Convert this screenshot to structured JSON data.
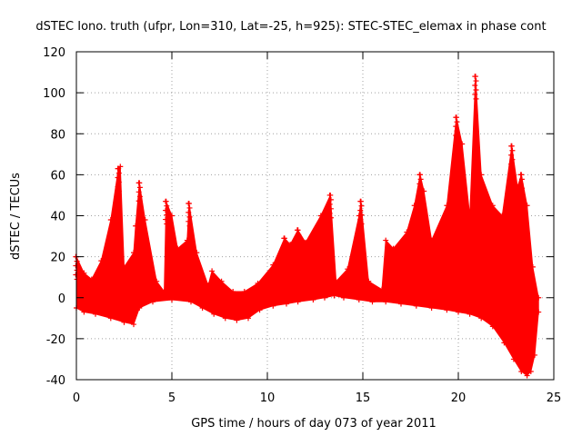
{
  "chart_data": {
    "type": "area",
    "title": "dSTEC Iono. truth (ufpr, Lon=310, Lat=-25, h=925): STEC-STEC_elemax in phase cont",
    "xlabel": "GPS time / hours of day 073 of year 2011",
    "ylabel": "dSTEC  / TECUs",
    "xlim": [
      0,
      25
    ],
    "ylim": [
      -40,
      120
    ],
    "x_ticks": [
      0,
      5,
      10,
      15,
      20,
      25
    ],
    "y_ticks": [
      -40,
      -20,
      0,
      20,
      40,
      60,
      80,
      100,
      120
    ],
    "grid": true,
    "legend": "none",
    "color": "#ff0000",
    "marker": "+",
    "series": [
      {
        "upper": [
          [
            0,
            20
          ],
          [
            0.4,
            12
          ],
          [
            0.8,
            9
          ],
          [
            1.3,
            18
          ],
          [
            1.8,
            38
          ],
          [
            2.2,
            63
          ],
          [
            2.3,
            64
          ],
          [
            2.5,
            15
          ],
          [
            3.0,
            22
          ],
          [
            3.1,
            35
          ],
          [
            3.3,
            56
          ],
          [
            3.6,
            38
          ],
          [
            4.2,
            8
          ],
          [
            4.6,
            3
          ],
          [
            4.7,
            47
          ],
          [
            5.0,
            40
          ],
          [
            5.3,
            24
          ],
          [
            5.8,
            28
          ],
          [
            5.9,
            46
          ],
          [
            6.3,
            22
          ],
          [
            6.9,
            6
          ],
          [
            7.1,
            13
          ],
          [
            7.6,
            8
          ],
          [
            8.2,
            3
          ],
          [
            8.8,
            3
          ],
          [
            9.5,
            7
          ],
          [
            10.3,
            16
          ],
          [
            10.9,
            29
          ],
          [
            11.2,
            26
          ],
          [
            11.6,
            33
          ],
          [
            12.0,
            27
          ],
          [
            12.8,
            40
          ],
          [
            13.3,
            50
          ],
          [
            13.6,
            8
          ],
          [
            14.2,
            14
          ],
          [
            14.8,
            40
          ],
          [
            14.9,
            47
          ],
          [
            15.3,
            8
          ],
          [
            16.0,
            4
          ],
          [
            16.2,
            28
          ],
          [
            16.6,
            24
          ],
          [
            17.3,
            32
          ],
          [
            17.7,
            45
          ],
          [
            18.0,
            60
          ],
          [
            18.2,
            52
          ],
          [
            18.6,
            28
          ],
          [
            19.4,
            45
          ],
          [
            19.9,
            88
          ],
          [
            20.2,
            75
          ],
          [
            20.6,
            40
          ],
          [
            20.9,
            108
          ],
          [
            21.2,
            60
          ],
          [
            21.8,
            45
          ],
          [
            22.3,
            40
          ],
          [
            22.8,
            74
          ],
          [
            23.1,
            54
          ],
          [
            23.3,
            60
          ],
          [
            23.6,
            45
          ],
          [
            23.9,
            15
          ],
          [
            24.2,
            0
          ]
        ],
        "lower": [
          [
            0,
            -5
          ],
          [
            0.4,
            -7
          ],
          [
            1.0,
            -8
          ],
          [
            1.8,
            -10
          ],
          [
            2.5,
            -12
          ],
          [
            3.0,
            -13
          ],
          [
            3.3,
            -5
          ],
          [
            4.0,
            -2
          ],
          [
            5.0,
            -1
          ],
          [
            6.0,
            -2
          ],
          [
            6.6,
            -5
          ],
          [
            7.2,
            -8
          ],
          [
            7.8,
            -10
          ],
          [
            8.4,
            -11
          ],
          [
            9.0,
            -10
          ],
          [
            9.6,
            -6
          ],
          [
            10.3,
            -4
          ],
          [
            11.0,
            -3
          ],
          [
            11.6,
            -2
          ],
          [
            12.4,
            -1
          ],
          [
            13.0,
            0
          ],
          [
            13.5,
            1
          ],
          [
            14.0,
            0
          ],
          [
            14.8,
            -1
          ],
          [
            15.5,
            -2
          ],
          [
            16.2,
            -2
          ],
          [
            17.0,
            -3
          ],
          [
            17.8,
            -4
          ],
          [
            18.6,
            -5
          ],
          [
            19.4,
            -6
          ],
          [
            20.0,
            -7
          ],
          [
            20.6,
            -8
          ],
          [
            21.2,
            -10
          ],
          [
            21.8,
            -14
          ],
          [
            22.4,
            -22
          ],
          [
            22.9,
            -30
          ],
          [
            23.3,
            -36
          ],
          [
            23.6,
            -38
          ],
          [
            23.8,
            -36
          ],
          [
            24.0,
            -28
          ],
          [
            24.2,
            -7
          ]
        ],
        "peaks": [
          [
            0.0,
            20
          ],
          [
            2.2,
            63
          ],
          [
            3.3,
            56
          ],
          [
            4.7,
            47
          ],
          [
            5.9,
            46
          ],
          [
            10.9,
            29
          ],
          [
            11.6,
            33
          ],
          [
            13.3,
            50
          ],
          [
            14.9,
            47
          ],
          [
            18.0,
            60
          ],
          [
            19.9,
            88
          ],
          [
            20.9,
            108
          ],
          [
            22.8,
            74
          ],
          [
            23.3,
            60
          ]
        ]
      }
    ]
  }
}
